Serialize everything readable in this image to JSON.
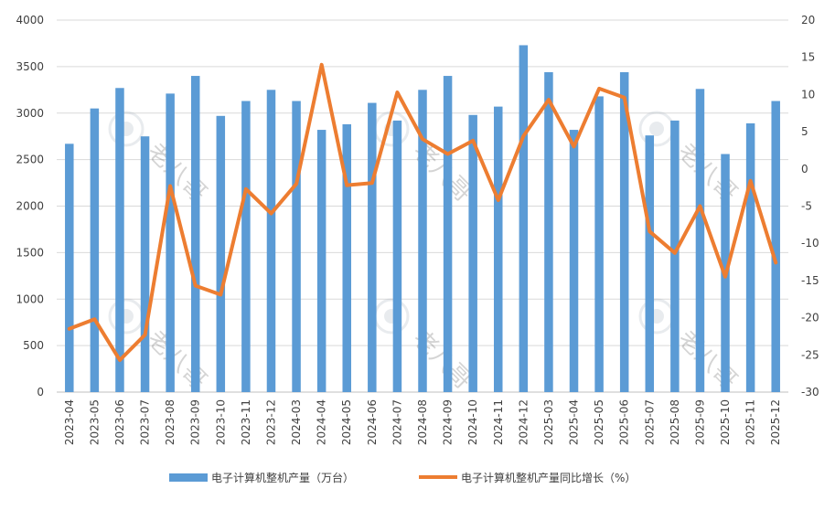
{
  "chart_data": {
    "type": "bar",
    "categories": [
      "2023-04",
      "2023-05",
      "2023-06",
      "2023-07",
      "2023-08",
      "2023-09",
      "2023-10",
      "2023-11",
      "2023-12",
      "2024-03",
      "2024-04",
      "2024-05",
      "2024-06",
      "2024-07",
      "2024-08",
      "2024-09",
      "2024-10",
      "2024-11",
      "2024-12",
      "2025-03",
      "2025-04",
      "2025-05",
      "2025-06",
      "2025-07",
      "2025-08",
      "2025-09",
      "2025-10",
      "2025-11",
      "2025-12"
    ],
    "series": [
      {
        "name": "电子计算机整机产量（万台）",
        "type": "bar",
        "axis": "left",
        "color": "#5B9BD5",
        "values": [
          2670,
          3050,
          3270,
          2750,
          3210,
          3400,
          2970,
          3130,
          3250,
          3130,
          2820,
          2880,
          3110,
          2920,
          3250,
          3400,
          2980,
          3070,
          3730,
          3440,
          2820,
          3180,
          3440,
          2760,
          2920,
          3260,
          2560,
          2890,
          3130
        ]
      },
      {
        "name": "电子计算机整机产量同比增长（%）",
        "type": "line",
        "axis": "right",
        "color": "#ED7D31",
        "values": [
          -21.5,
          -20.2,
          -25.7,
          -22.3,
          -2.3,
          -15.7,
          -16.9,
          -2.7,
          -6.0,
          -2.0,
          14.0,
          -2.2,
          -1.9,
          10.3,
          4.0,
          2.0,
          3.8,
          -4.2,
          4.4,
          9.3,
          3.0,
          10.8,
          9.6,
          -8.4,
          -11.3,
          -5.0,
          -14.5,
          -1.6,
          -12.6
        ]
      }
    ],
    "y_left": {
      "min": 0,
      "max": 4000,
      "ticks": [
        0,
        500,
        1000,
        1500,
        2000,
        2500,
        3000,
        3500,
        4000
      ]
    },
    "y_right": {
      "min": -30,
      "max": 20,
      "ticks": [
        -30,
        -25,
        -20,
        -15,
        -10,
        -5,
        0,
        5,
        10,
        15,
        20
      ]
    },
    "grid": true,
    "legend_position": "bottom",
    "watermark": "老八哥"
  }
}
